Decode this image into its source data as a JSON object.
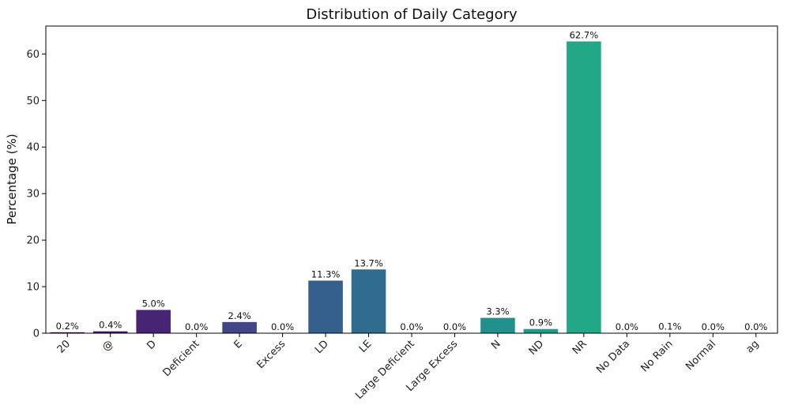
{
  "chart_data": {
    "type": "bar",
    "title": "Distribution of Daily Category",
    "xlabel": "",
    "ylabel": "Percentage (%)",
    "ylim": [
      0,
      66
    ],
    "yticks": [
      0,
      10,
      20,
      30,
      40,
      50,
      60
    ],
    "categories": [
      "20",
      "@",
      "D",
      "Deficient",
      "E",
      "Excess",
      "LD",
      "LE",
      "Large Deficient",
      "Large Excess",
      "N",
      "ND",
      "NR",
      "No Data",
      "No Rain",
      "Normal",
      "ag"
    ],
    "values": [
      0.2,
      0.4,
      5.0,
      0.0,
      2.4,
      0.0,
      11.3,
      13.7,
      0.0,
      0.0,
      3.3,
      0.9,
      62.7,
      0.0,
      0.1,
      0.0,
      0.0
    ],
    "value_labels": [
      "0.2%",
      "0.4%",
      "5.0%",
      "0.0%",
      "2.4%",
      "0.0%",
      "11.3%",
      "13.7%",
      "0.0%",
      "0.0%",
      "3.3%",
      "0.9%",
      "62.7%",
      "0.0%",
      "0.1%",
      "0.0%",
      "0.0%"
    ],
    "colors": [
      "#440154",
      "#471365",
      "#482475",
      "#463480",
      "#414487",
      "#3b528b",
      "#355f8d",
      "#2f6c8e",
      "#2a788e",
      "#25848e",
      "#21918c",
      "#1e9c89",
      "#22a884",
      "#2fb47c",
      "#44bf70",
      "#5ec962",
      "#7ad151"
    ],
    "grid": false,
    "legend": "none"
  }
}
